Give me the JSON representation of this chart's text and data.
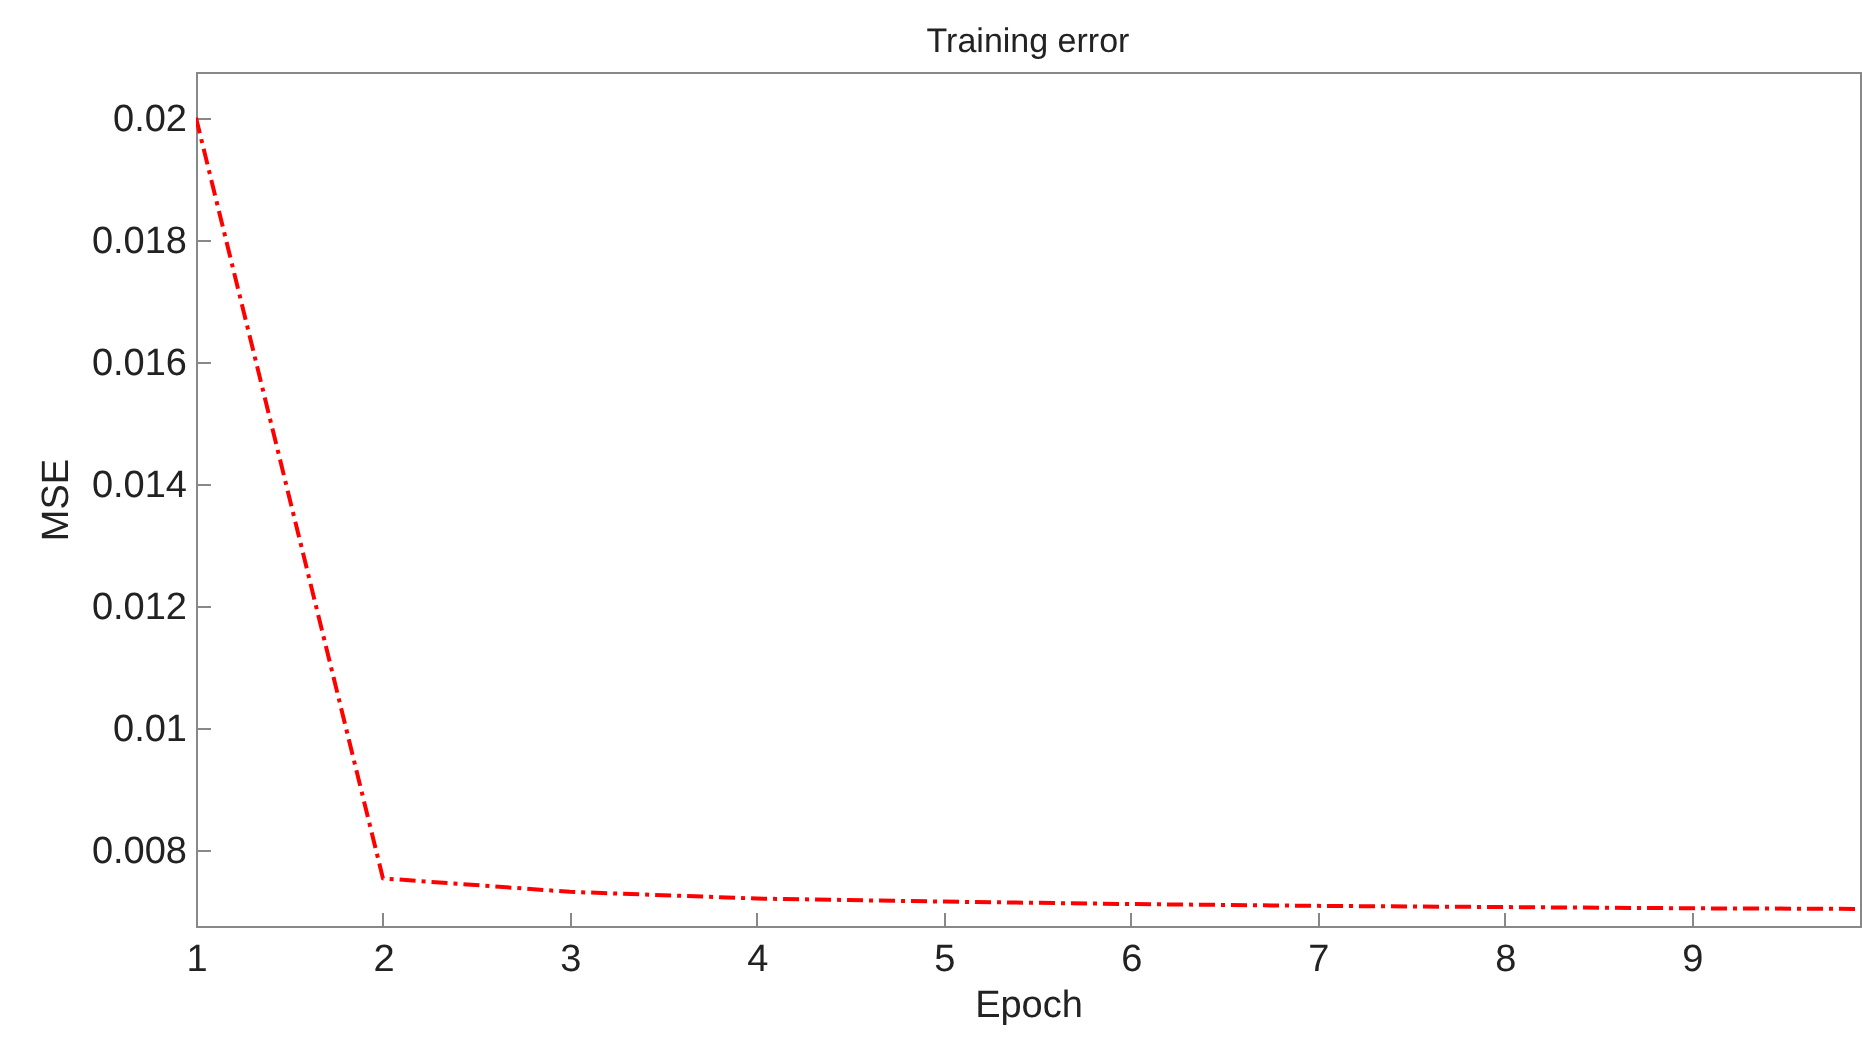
{
  "chart_data": {
    "type": "line",
    "title": "Training error",
    "xlabel": "Epoch",
    "ylabel": "MSE",
    "x": [
      1,
      2,
      3,
      4,
      5,
      6,
      7,
      8,
      9,
      9.9
    ],
    "series": [
      {
        "color": "#ff0000",
        "values": [
          0.02,
          0.00753,
          0.00731,
          0.0072,
          0.00715,
          0.00711,
          0.00708,
          0.00706,
          0.00704,
          0.00703
        ]
      }
    ],
    "xlim": [
      1,
      9.9
    ],
    "xticks": [
      1,
      2,
      3,
      4,
      5,
      6,
      7,
      8,
      9
    ],
    "ylim": [
      0.00675,
      0.02075
    ],
    "yticks": [
      0.008,
      0.01,
      0.012,
      0.014,
      0.016,
      0.018,
      0.02
    ],
    "grid": false,
    "legend": false,
    "marker": "none",
    "line_style": "dashed"
  }
}
